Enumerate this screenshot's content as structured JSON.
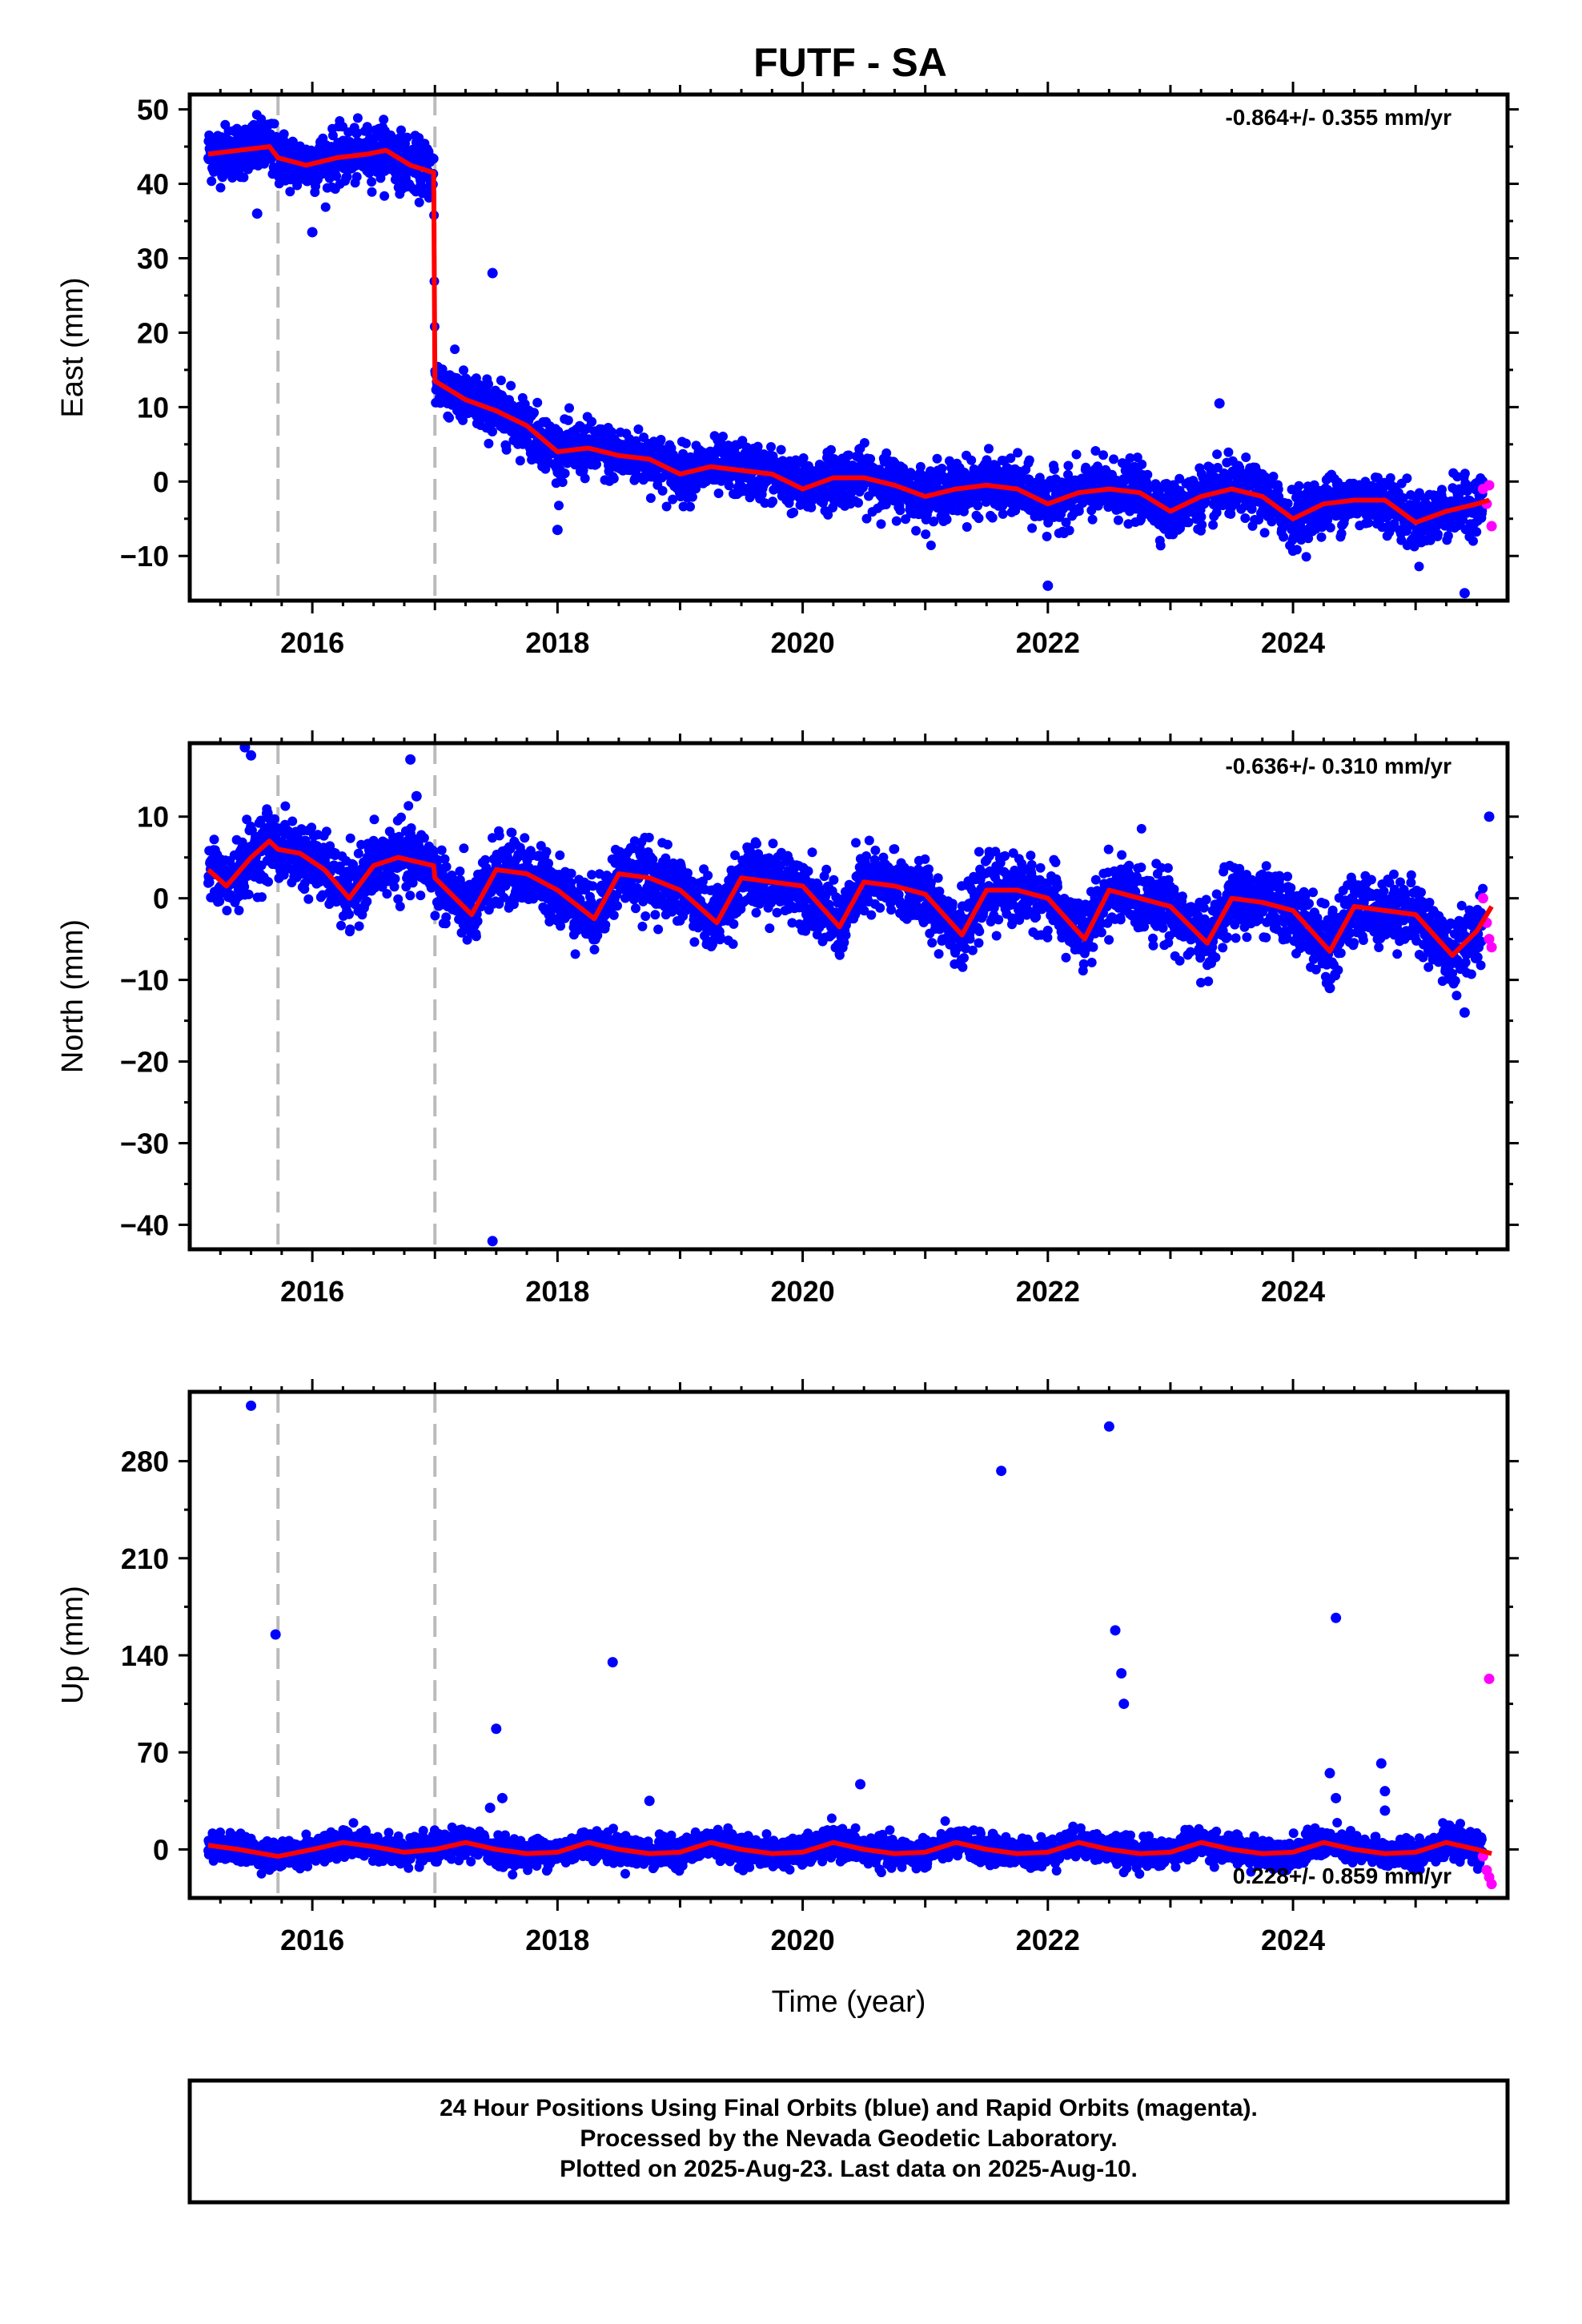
{
  "title": "FUTF - SA",
  "footer": {
    "line1": "24 Hour Positions Using Final Orbits (blue) and Rapid Orbits (magenta).",
    "line2": "Processed by the Nevada Geodetic Laboratory.",
    "line3": "Plotted on 2025-Aug-23. Last data on 2025-Aug-10."
  },
  "colors": {
    "final_orbit_points": "#0000ff",
    "rapid_orbit_points": "#ff00ff",
    "model_line": "#ff0000",
    "equipment_change_lines": "#bbbbbb",
    "frame": "#000000"
  },
  "chart_data": [
    {
      "type": "scatter",
      "component": "east",
      "ylabel": "East (mm)",
      "xlim": [
        2015.0,
        2025.75
      ],
      "ylim": [
        -16,
        52
      ],
      "yticks": [
        -10,
        0,
        10,
        20,
        30,
        40,
        50
      ],
      "yticklabels": [
        "−10",
        "0",
        "10",
        "20",
        "30",
        "40",
        "50"
      ],
      "xticks": [
        2016,
        2018,
        2020,
        2022,
        2024
      ],
      "xticklabels": [
        "2016",
        "2018",
        "2020",
        "2022",
        "2024"
      ],
      "rate_text": "-0.864+/- 0.355 mm/yr",
      "rate_position": "top-right",
      "equipment_changes": [
        2015.72,
        2017.0
      ],
      "model": {
        "x": [
          2015.15,
          2015.4,
          2015.65,
          2015.72,
          2015.95,
          2016.2,
          2016.45,
          2016.6,
          2016.8,
          2016.99,
          2017.0,
          2017.25,
          2017.5,
          2017.75,
          2018.0,
          2018.25,
          2018.5,
          2018.75,
          2019.0,
          2019.25,
          2019.5,
          2019.75,
          2020.0,
          2020.25,
          2020.5,
          2020.75,
          2021.0,
          2021.25,
          2021.5,
          2021.75,
          2022.0,
          2022.25,
          2022.5,
          2022.75,
          2023.0,
          2023.25,
          2023.5,
          2023.75,
          2024.0,
          2024.25,
          2024.5,
          2024.75,
          2025.0,
          2025.25,
          2025.5,
          2025.6
        ],
        "y": [
          44,
          44.5,
          45,
          43.5,
          42.5,
          43.5,
          44,
          44.5,
          42.5,
          41.5,
          13.5,
          11,
          9.5,
          7.5,
          4,
          4.5,
          3.5,
          3,
          1,
          2,
          1.5,
          1,
          -1,
          0.5,
          0.5,
          -0.5,
          -2,
          -1,
          -0.5,
          -1,
          -3,
          -1.5,
          -1,
          -1.5,
          -4,
          -2,
          -1,
          -2,
          -5,
          -3,
          -2.5,
          -2.5,
          -5.5,
          -4,
          -3,
          -2.5
        ]
      },
      "outliers": [
        [
          2017.47,
          28
        ],
        [
          2023.4,
          10.5
        ],
        [
          2025.4,
          -15
        ],
        [
          2022.0,
          -14
        ],
        [
          2015.55,
          36
        ],
        [
          2016.0,
          33.5
        ],
        [
          2018.0,
          -6.5
        ]
      ],
      "noise_mm": 1.8,
      "rapid_points": {
        "x": [
          2025.55,
          2025.58,
          2025.6,
          2025.62
        ],
        "y": [
          -1,
          -3,
          -0.5,
          -6
        ]
      }
    },
    {
      "type": "scatter",
      "component": "north",
      "ylabel": "North (mm)",
      "xlim": [
        2015.0,
        2025.75
      ],
      "ylim": [
        -43,
        19
      ],
      "yticks": [
        -40,
        -30,
        -20,
        -10,
        0,
        10
      ],
      "yticklabels": [
        "−40",
        "−30",
        "−20",
        "−10",
        "0",
        "10"
      ],
      "xticks": [
        2016,
        2018,
        2020,
        2022,
        2024
      ],
      "xticklabels": [
        "2016",
        "2018",
        "2020",
        "2022",
        "2024"
      ],
      "rate_text": "-0.636+/- 0.310 mm/yr",
      "rate_position": "top-right",
      "equipment_changes": [
        2015.72,
        2017.0
      ],
      "model": {
        "x": [
          2015.15,
          2015.3,
          2015.5,
          2015.65,
          2015.72,
          2015.9,
          2016.1,
          2016.3,
          2016.5,
          2016.7,
          2016.99,
          2017.0,
          2017.3,
          2017.5,
          2017.75,
          2018.0,
          2018.3,
          2018.5,
          2018.75,
          2019.0,
          2019.3,
          2019.5,
          2019.75,
          2020.0,
          2020.3,
          2020.5,
          2020.75,
          2021.0,
          2021.3,
          2021.5,
          2021.75,
          2022.0,
          2022.3,
          2022.5,
          2022.75,
          2023.0,
          2023.3,
          2023.5,
          2023.75,
          2024.0,
          2024.3,
          2024.5,
          2024.75,
          2025.0,
          2025.3,
          2025.5,
          2025.62
        ],
        "y": [
          3.5,
          1.5,
          5,
          7,
          6,
          5.5,
          3.5,
          0,
          4,
          5,
          4,
          2.5,
          -2,
          3.5,
          3,
          1,
          -2.5,
          3,
          2.5,
          1,
          -3,
          2.5,
          2,
          1.5,
          -3.5,
          2,
          1.5,
          0.5,
          -4.5,
          1,
          1,
          0,
          -5,
          1,
          0,
          -1,
          -5.5,
          0,
          -0.5,
          -1.5,
          -6.5,
          -1,
          -1.5,
          -2,
          -7,
          -4,
          -1
        ]
      },
      "outliers": [
        [
          2015.45,
          18.5
        ],
        [
          2015.5,
          17.5
        ],
        [
          2016.8,
          17
        ],
        [
          2016.85,
          12.5
        ],
        [
          2017.47,
          -42
        ],
        [
          2025.4,
          -14
        ],
        [
          2025.6,
          10
        ],
        [
          2024.3,
          -11
        ]
      ],
      "noise_mm": 2.0,
      "rapid_points": {
        "x": [
          2025.55,
          2025.58,
          2025.6,
          2025.62
        ],
        "y": [
          0,
          -3,
          -5,
          -6
        ]
      }
    },
    {
      "type": "scatter",
      "component": "up",
      "ylabel": "Up (mm)",
      "xlabel": "Time (year)",
      "xlim": [
        2015.0,
        2025.75
      ],
      "ylim": [
        -35,
        330
      ],
      "yticks": [
        0,
        70,
        140,
        210,
        280
      ],
      "yticklabels": [
        "0",
        "70",
        "140",
        "210",
        "280"
      ],
      "xticks": [
        2016,
        2018,
        2020,
        2022,
        2024
      ],
      "xticklabels": [
        "2016",
        "2018",
        "2020",
        "2022",
        "2024"
      ],
      "rate_text": "0.228+/- 0.859 mm/yr",
      "rate_position": "bottom-right",
      "equipment_changes": [
        2015.72,
        2017.0
      ],
      "model": {
        "x": [
          2015.15,
          2015.4,
          2015.72,
          2016.0,
          2016.25,
          2016.5,
          2016.75,
          2017.0,
          2017.25,
          2017.5,
          2017.75,
          2018.0,
          2018.25,
          2018.5,
          2018.75,
          2019.0,
          2019.25,
          2019.5,
          2019.75,
          2020.0,
          2020.25,
          2020.5,
          2020.75,
          2021.0,
          2021.25,
          2021.5,
          2021.75,
          2022.0,
          2022.25,
          2022.5,
          2022.75,
          2023.0,
          2023.25,
          2023.5,
          2023.75,
          2024.0,
          2024.25,
          2024.5,
          2024.75,
          2025.0,
          2025.25,
          2025.5,
          2025.62
        ],
        "y": [
          3,
          0,
          -5,
          0,
          5,
          2,
          -2,
          0,
          5,
          0,
          -3,
          -2,
          5,
          0,
          -3,
          -2,
          5,
          0,
          -3,
          -2,
          5,
          0,
          -3,
          -2,
          5,
          0,
          -3,
          -2,
          5,
          0,
          -3,
          -2,
          5,
          0,
          -3,
          -2,
          5,
          0,
          -3,
          -2,
          5,
          0,
          -3
        ]
      },
      "outliers": [
        [
          2015.5,
          320
        ],
        [
          2015.7,
          155
        ],
        [
          2017.5,
          87
        ],
        [
          2017.55,
          37
        ],
        [
          2017.45,
          30
        ],
        [
          2018.45,
          135
        ],
        [
          2018.75,
          35
        ],
        [
          2020.47,
          47
        ],
        [
          2021.62,
          273
        ],
        [
          2022.5,
          305
        ],
        [
          2022.55,
          158
        ],
        [
          2022.6,
          127
        ],
        [
          2022.62,
          105
        ],
        [
          2024.35,
          167
        ],
        [
          2024.3,
          55
        ],
        [
          2024.35,
          37
        ],
        [
          2024.72,
          62
        ],
        [
          2024.75,
          42
        ],
        [
          2024.75,
          28
        ]
      ],
      "noise_mm": 5.0,
      "rapid_points": {
        "x": [
          2025.55,
          2025.58,
          2025.6,
          2025.62,
          2025.6
        ],
        "y": [
          -5,
          -15,
          -20,
          -25,
          123
        ]
      }
    }
  ]
}
